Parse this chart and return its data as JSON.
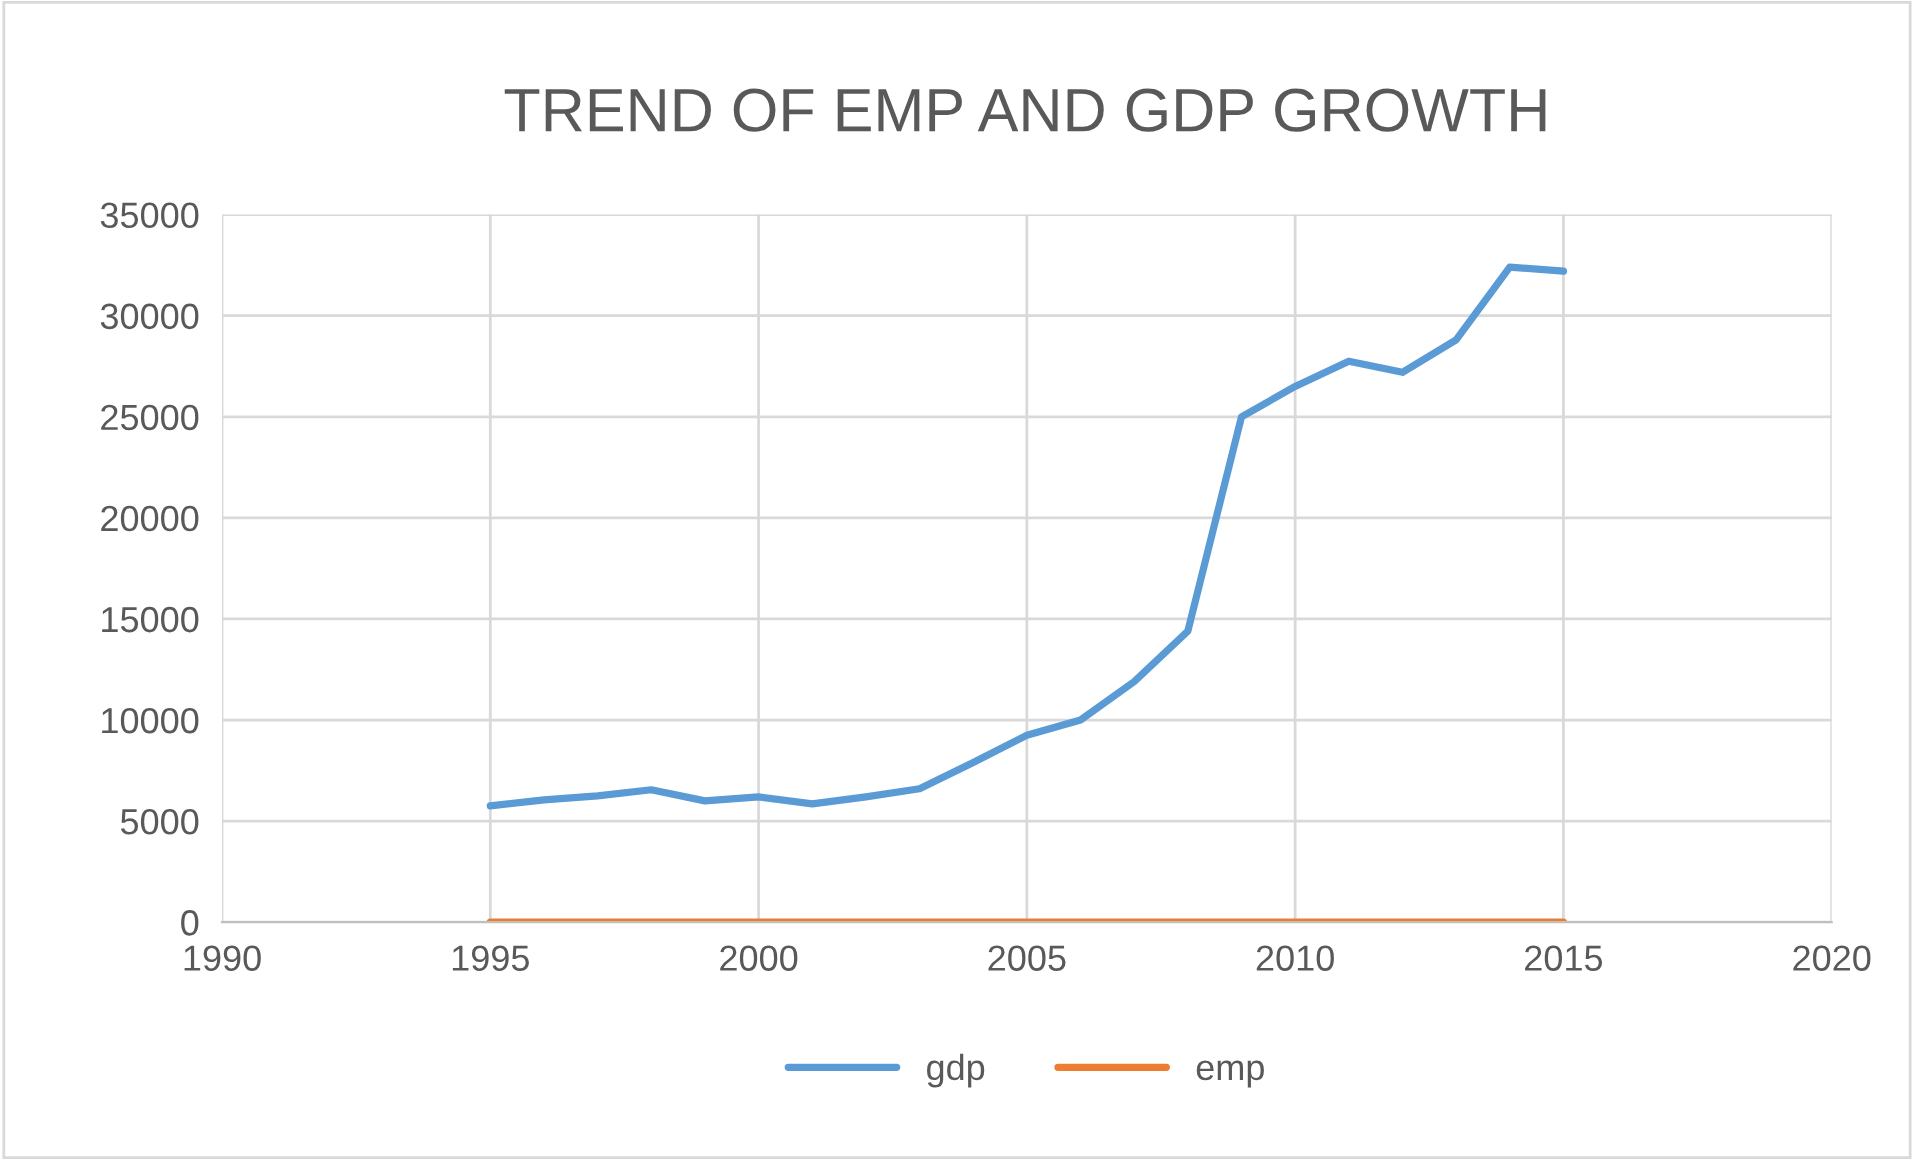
{
  "chart_data": {
    "type": "line",
    "title": "TREND OF EMP AND GDP GROWTH",
    "x": [
      1995,
      1996,
      1997,
      1998,
      1999,
      2000,
      2001,
      2002,
      2003,
      2004,
      2005,
      2006,
      2007,
      2008,
      2009,
      2010,
      2011,
      2012,
      2013,
      2014,
      2015
    ],
    "series": [
      {
        "name": "gdp",
        "color": "#5b9bd5",
        "values": [
          5750,
          6050,
          6250,
          6550,
          6000,
          6200,
          5850,
          6200,
          6600,
          7900,
          9250,
          10000,
          11900,
          14400,
          25000,
          26500,
          27750,
          27200,
          28800,
          32400,
          32200
        ]
      },
      {
        "name": "emp",
        "color": "#ed7d31",
        "values": [
          0,
          0,
          0,
          0,
          0,
          0,
          0,
          0,
          0,
          0,
          0,
          0,
          0,
          0,
          0,
          0,
          0,
          0,
          0,
          0,
          0
        ]
      }
    ],
    "xlim": [
      1990,
      2020
    ],
    "xticks": [
      1990,
      1995,
      2000,
      2005,
      2010,
      2015,
      2020
    ],
    "ylim": [
      0,
      35000
    ],
    "yticks": [
      0,
      5000,
      10000,
      15000,
      20000,
      25000,
      30000,
      35000
    ],
    "grid": true,
    "legend": "bottom",
    "marker": "none",
    "line_style": "solid"
  }
}
